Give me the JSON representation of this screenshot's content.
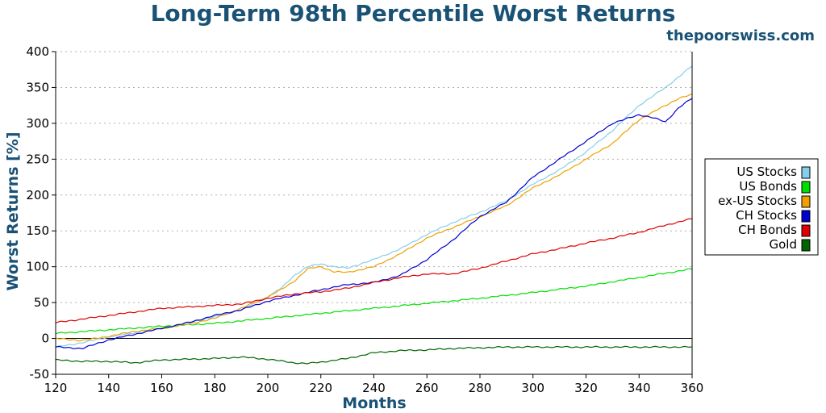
{
  "chart_data": {
    "type": "line",
    "title": "Long-Term 98th Percentile Worst Returns",
    "watermark": "thepoorswiss.com",
    "xlabel": "Months",
    "ylabel": "Worst Returns [%]",
    "xlim": [
      120,
      360
    ],
    "ylim": [
      -50,
      400
    ],
    "xticks": [
      120,
      140,
      160,
      180,
      200,
      220,
      240,
      260,
      280,
      300,
      320,
      340,
      360
    ],
    "yticks": [
      -50,
      0,
      50,
      100,
      150,
      200,
      250,
      300,
      350,
      400
    ],
    "grid": "horizontal dotted",
    "zero_line": true,
    "legend_position": "right",
    "series": [
      {
        "name": "US Stocks",
        "color": "#87ceeb",
        "points": [
          [
            120,
            -12
          ],
          [
            130,
            -6
          ],
          [
            140,
            2
          ],
          [
            150,
            8
          ],
          [
            160,
            14
          ],
          [
            170,
            22
          ],
          [
            180,
            30
          ],
          [
            190,
            40
          ],
          [
            200,
            58
          ],
          [
            205,
            70
          ],
          [
            210,
            88
          ],
          [
            215,
            100
          ],
          [
            220,
            104
          ],
          [
            225,
            100
          ],
          [
            230,
            98
          ],
          [
            240,
            110
          ],
          [
            250,
            125
          ],
          [
            260,
            145
          ],
          [
            270,
            162
          ],
          [
            280,
            176
          ],
          [
            290,
            192
          ],
          [
            300,
            215
          ],
          [
            310,
            235
          ],
          [
            320,
            260
          ],
          [
            330,
            290
          ],
          [
            340,
            325
          ],
          [
            350,
            350
          ],
          [
            360,
            380
          ]
        ]
      },
      {
        "name": "US Bonds",
        "color": "#00e000",
        "points": [
          [
            120,
            7
          ],
          [
            140,
            12
          ],
          [
            160,
            17
          ],
          [
            180,
            21
          ],
          [
            200,
            28
          ],
          [
            220,
            35
          ],
          [
            240,
            42
          ],
          [
            260,
            49
          ],
          [
            280,
            56
          ],
          [
            300,
            64
          ],
          [
            320,
            73
          ],
          [
            340,
            85
          ],
          [
            360,
            97
          ]
        ]
      },
      {
        "name": "ex-US Stocks",
        "color": "#f0a000",
        "points": [
          [
            120,
            0
          ],
          [
            130,
            -3
          ],
          [
            140,
            3
          ],
          [
            150,
            10
          ],
          [
            160,
            14
          ],
          [
            170,
            20
          ],
          [
            180,
            28
          ],
          [
            190,
            42
          ],
          [
            200,
            58
          ],
          [
            205,
            68
          ],
          [
            210,
            80
          ],
          [
            215,
            97
          ],
          [
            220,
            100
          ],
          [
            225,
            93
          ],
          [
            230,
            92
          ],
          [
            240,
            100
          ],
          [
            250,
            118
          ],
          [
            260,
            140
          ],
          [
            270,
            155
          ],
          [
            280,
            170
          ],
          [
            290,
            185
          ],
          [
            300,
            210
          ],
          [
            310,
            228
          ],
          [
            320,
            250
          ],
          [
            330,
            272
          ],
          [
            340,
            305
          ],
          [
            350,
            325
          ],
          [
            355,
            335
          ],
          [
            360,
            340
          ]
        ]
      },
      {
        "name": "CH Stocks",
        "color": "#0000d0",
        "points": [
          [
            120,
            -12
          ],
          [
            130,
            -14
          ],
          [
            140,
            -2
          ],
          [
            150,
            6
          ],
          [
            160,
            14
          ],
          [
            170,
            22
          ],
          [
            180,
            32
          ],
          [
            190,
            40
          ],
          [
            200,
            52
          ],
          [
            210,
            60
          ],
          [
            220,
            68
          ],
          [
            230,
            75
          ],
          [
            240,
            78
          ],
          [
            250,
            88
          ],
          [
            260,
            110
          ],
          [
            270,
            138
          ],
          [
            280,
            170
          ],
          [
            290,
            190
          ],
          [
            300,
            225
          ],
          [
            310,
            250
          ],
          [
            320,
            275
          ],
          [
            330,
            300
          ],
          [
            340,
            312
          ],
          [
            345,
            308
          ],
          [
            350,
            302
          ],
          [
            355,
            322
          ],
          [
            360,
            335
          ]
        ]
      },
      {
        "name": "CH Bonds",
        "color": "#e00000",
        "points": [
          [
            120,
            22
          ],
          [
            140,
            32
          ],
          [
            160,
            42
          ],
          [
            180,
            46
          ],
          [
            190,
            48
          ],
          [
            200,
            56
          ],
          [
            210,
            62
          ],
          [
            220,
            65
          ],
          [
            230,
            70
          ],
          [
            240,
            78
          ],
          [
            250,
            85
          ],
          [
            260,
            90
          ],
          [
            270,
            90
          ],
          [
            280,
            98
          ],
          [
            290,
            108
          ],
          [
            300,
            118
          ],
          [
            310,
            125
          ],
          [
            320,
            133
          ],
          [
            330,
            140
          ],
          [
            340,
            148
          ],
          [
            350,
            158
          ],
          [
            360,
            167
          ]
        ]
      },
      {
        "name": "Gold",
        "color": "#006400",
        "points": [
          [
            120,
            -30
          ],
          [
            130,
            -32
          ],
          [
            140,
            -32
          ],
          [
            150,
            -34
          ],
          [
            160,
            -30
          ],
          [
            170,
            -29
          ],
          [
            180,
            -28
          ],
          [
            190,
            -26
          ],
          [
            200,
            -29
          ],
          [
            210,
            -34
          ],
          [
            215,
            -35
          ],
          [
            220,
            -33
          ],
          [
            230,
            -28
          ],
          [
            240,
            -20
          ],
          [
            250,
            -17
          ],
          [
            260,
            -16
          ],
          [
            270,
            -14
          ],
          [
            280,
            -13
          ],
          [
            290,
            -12
          ],
          [
            300,
            -12
          ],
          [
            320,
            -12
          ],
          [
            340,
            -12
          ],
          [
            360,
            -12
          ]
        ]
      }
    ]
  }
}
